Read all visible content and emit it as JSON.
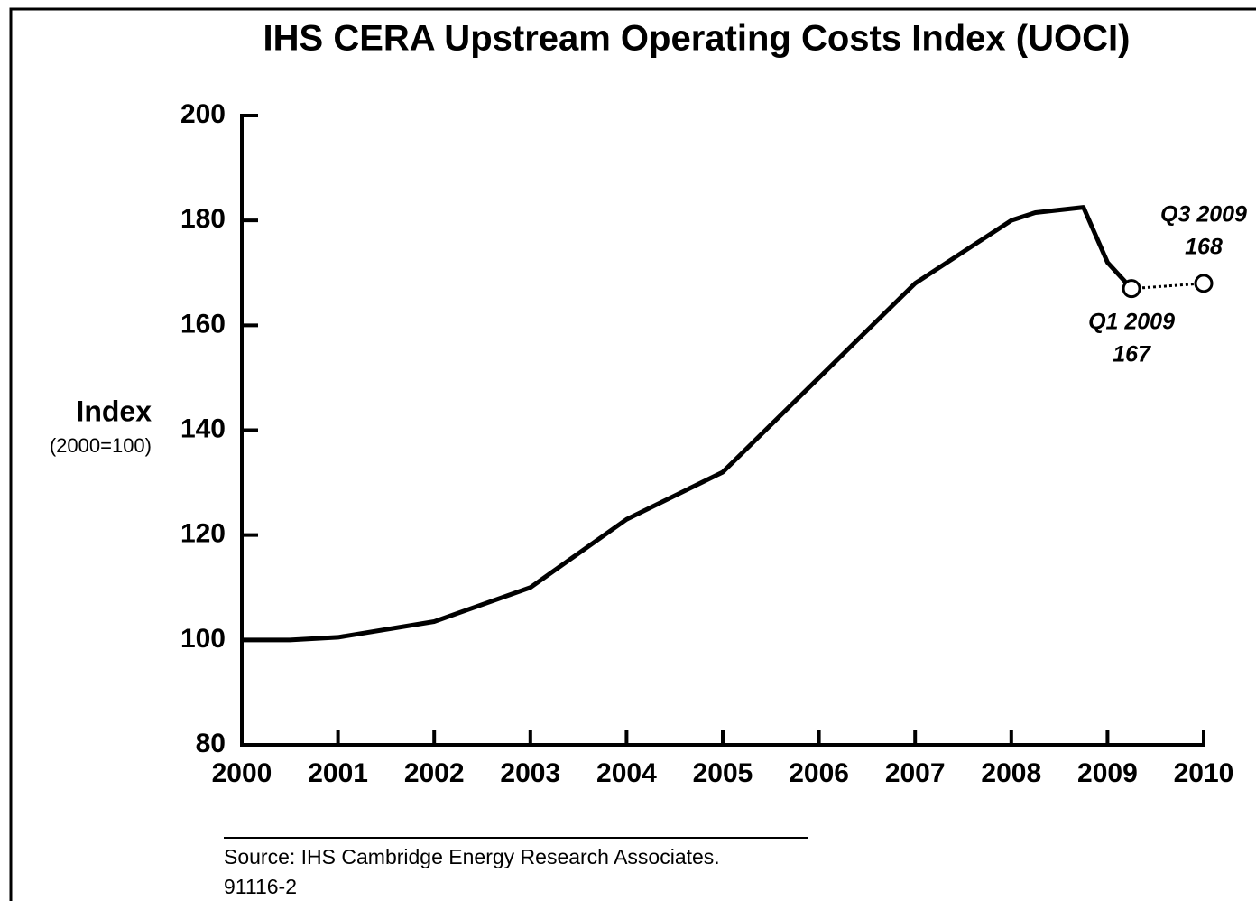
{
  "chart_data": {
    "type": "line",
    "title": "IHS CERA Upstream Operating Costs Index (UOCI)",
    "y_label": "Index",
    "y_sublabel": "(2000=100)",
    "x": [
      2000,
      2000.5,
      2001,
      2002,
      2003,
      2004,
      2005,
      2006,
      2007,
      2008,
      2008.25,
      2008.75,
      2009,
      2009.25,
      2010
    ],
    "series": [
      {
        "color": "#000000",
        "dash": false,
        "values": [
          100,
          100,
          100.5,
          103.5,
          110,
          123,
          132,
          150,
          168,
          180,
          181.5,
          182.5,
          172,
          167,
          null
        ]
      },
      {
        "color": "#000000",
        "dash": true,
        "markers": true,
        "values": [
          null,
          null,
          null,
          null,
          null,
          null,
          null,
          null,
          null,
          null,
          null,
          null,
          null,
          167,
          168
        ]
      }
    ],
    "annotations": [
      "Q1 2009",
      "Q3 2009"
    ],
    "xlim": [
      2000,
      2010
    ],
    "xticks": [
      2000,
      2001,
      2002,
      2003,
      2004,
      2005,
      2006,
      2007,
      2008,
      2009,
      2010
    ],
    "ylim": [
      80,
      200
    ],
    "yticks": [
      80,
      100,
      120,
      140,
      160,
      180,
      200
    ],
    "source": "Source: IHS Cambridge Energy Research Associates.",
    "code": "91116-2"
  }
}
